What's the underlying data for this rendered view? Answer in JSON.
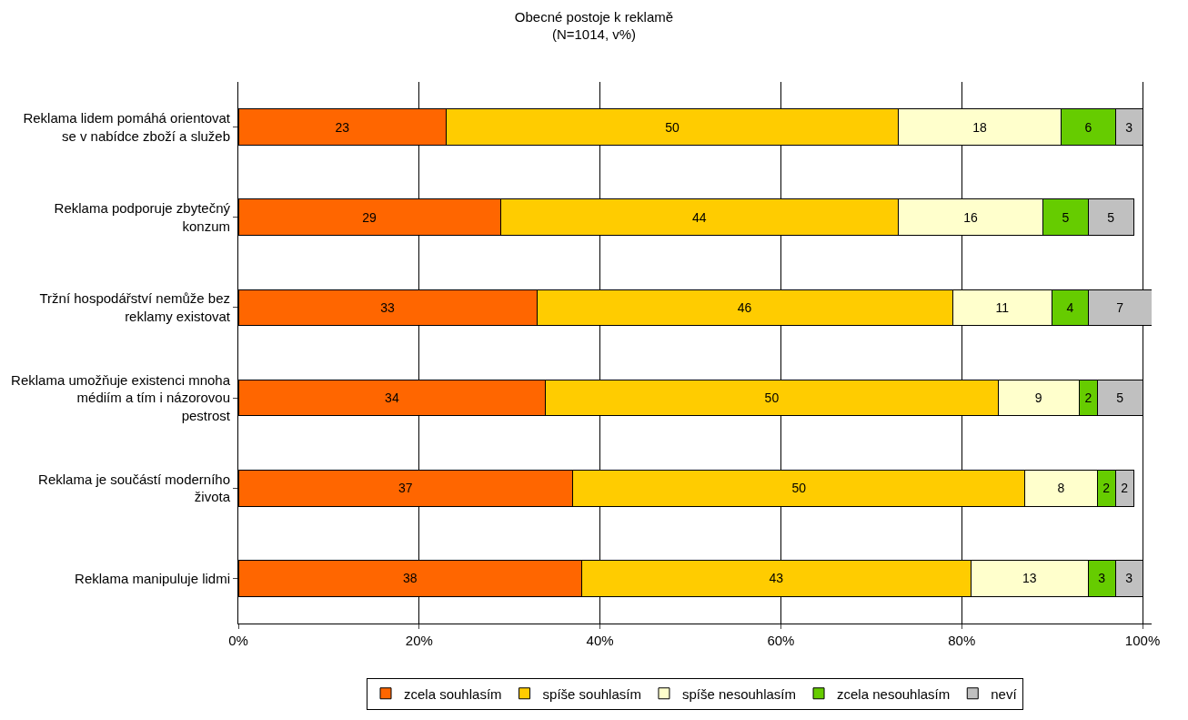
{
  "chart_data": {
    "type": "bar",
    "orientation": "horizontal",
    "stacked": true,
    "title": "Obecné postoje k reklamě",
    "subtitle": "(N=1014, v%)",
    "categories": [
      "Reklama lidem pomáhá orientovat se v nabídce zboží a služeb",
      "Reklama podporuje zbytečný konzum",
      "Tržní hospodářství nemůže bez reklamy existovat",
      "Reklama umožňuje existenci mnoha médiím a tím i názorovou pestrost",
      "Reklama je součástí moderního života",
      "Reklama manipuluje lidmi"
    ],
    "series": [
      {
        "name": "zcela souhlasím",
        "color": "#ff6600",
        "values": [
          23,
          29,
          33,
          34,
          37,
          38
        ]
      },
      {
        "name": "spíše souhlasím",
        "color": "#ffcc00",
        "values": [
          50,
          44,
          46,
          50,
          50,
          43
        ]
      },
      {
        "name": "spíše nesouhlasím",
        "color": "#ffffcc",
        "values": [
          18,
          16,
          11,
          9,
          8,
          13
        ]
      },
      {
        "name": "zcela nesouhlasím",
        "color": "#66cc00",
        "values": [
          6,
          5,
          4,
          2,
          2,
          3
        ]
      },
      {
        "name": "neví",
        "color": "#c0c0c0",
        "values": [
          3,
          5,
          7,
          5,
          2,
          3
        ]
      }
    ],
    "xlim": [
      0,
      101
    ],
    "xticks": [
      {
        "value": 0,
        "label": "0%"
      },
      {
        "value": 20,
        "label": "20%"
      },
      {
        "value": 40,
        "label": "40%"
      },
      {
        "value": 60,
        "label": "60%"
      },
      {
        "value": 80,
        "label": "80%"
      },
      {
        "value": 100,
        "label": "100%"
      }
    ],
    "grid": "x",
    "legend": "bottom",
    "data_labels": true
  }
}
